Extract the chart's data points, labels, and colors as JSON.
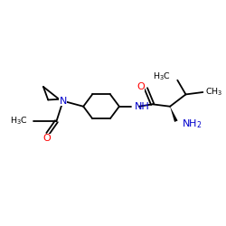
{
  "background": "#ffffff",
  "bond_color": "#000000",
  "N_color": "#0000cd",
  "O_color": "#ff0000",
  "text_color": "#000000",
  "figsize": [
    2.5,
    2.5
  ],
  "dpi": 100,
  "xlim": [
    0,
    10
  ],
  "ylim": [
    0,
    10
  ]
}
